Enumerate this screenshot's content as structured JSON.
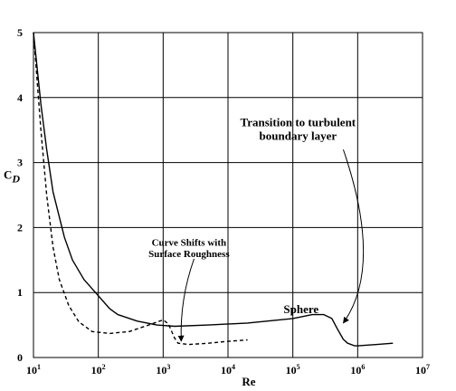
{
  "chart_data": {
    "type": "line",
    "xlabel": "Re",
    "ylabel_main": "C",
    "ylabel_sub": "D",
    "x_scale": "log",
    "xlim": [
      10,
      10000000
    ],
    "ylim": [
      0,
      5
    ],
    "grid": true,
    "x_ticks": [
      {
        "value": 10,
        "base": "10",
        "exp": "1"
      },
      {
        "value": 100,
        "base": "10",
        "exp": "2"
      },
      {
        "value": 1000,
        "base": "10",
        "exp": "3"
      },
      {
        "value": 10000,
        "base": "10",
        "exp": "4"
      },
      {
        "value": 100000,
        "base": "10",
        "exp": "5"
      },
      {
        "value": 1000000,
        "base": "10",
        "exp": "6"
      },
      {
        "value": 10000000,
        "base": "10",
        "exp": "7"
      }
    ],
    "y_ticks": [
      "0",
      "1",
      "2",
      "3",
      "4",
      "5"
    ],
    "series": [
      {
        "name": "Sphere",
        "style": "solid",
        "points": [
          [
            10,
            5.0
          ],
          [
            13,
            3.9
          ],
          [
            16,
            3.2
          ],
          [
            20,
            2.55
          ],
          [
            30,
            1.85
          ],
          [
            40,
            1.5
          ],
          [
            60,
            1.2
          ],
          [
            100,
            0.95
          ],
          [
            150,
            0.75
          ],
          [
            200,
            0.66
          ],
          [
            400,
            0.56
          ],
          [
            800,
            0.5
          ],
          [
            1500,
            0.48
          ],
          [
            5000,
            0.5
          ],
          [
            20000,
            0.53
          ],
          [
            100000,
            0.6
          ],
          [
            200000,
            0.66
          ],
          [
            300000,
            0.66
          ],
          [
            400000,
            0.6
          ],
          [
            480000,
            0.45
          ],
          [
            600000,
            0.28
          ],
          [
            700000,
            0.22
          ],
          [
            900000,
            0.18
          ],
          [
            1000000,
            0.18
          ],
          [
            2000000,
            0.2
          ],
          [
            3500000,
            0.22
          ]
        ]
      },
      {
        "name": "",
        "style": "dashed",
        "points": [
          [
            10,
            5.0
          ],
          [
            13,
            3.5
          ],
          [
            16,
            2.5
          ],
          [
            20,
            1.7
          ],
          [
            25,
            1.2
          ],
          [
            35,
            0.8
          ],
          [
            50,
            0.55
          ],
          [
            80,
            0.4
          ],
          [
            150,
            0.37
          ],
          [
            300,
            0.4
          ],
          [
            600,
            0.5
          ],
          [
            1000,
            0.58
          ],
          [
            1200,
            0.52
          ],
          [
            1500,
            0.3
          ],
          [
            1700,
            0.22
          ],
          [
            2500,
            0.2
          ],
          [
            5000,
            0.22
          ],
          [
            10000,
            0.25
          ],
          [
            20000,
            0.27
          ]
        ]
      }
    ],
    "annotations": [
      {
        "id": "sphere",
        "lines": [
          "Sphere"
        ],
        "x": 250000,
        "y": 0.68,
        "size": 13,
        "anchor": "end"
      },
      {
        "id": "roughness",
        "lines": [
          "Curve Shifts with",
          "Surface Roughness"
        ],
        "x": 2500,
        "y": 1.72,
        "size": 11,
        "anchor": "middle",
        "arrow_from": [
          3000,
          1.52
        ],
        "arrow_ctrl": [
          1800,
          0.9
        ],
        "arrow_to": [
          1900,
          0.25
        ]
      },
      {
        "id": "transition",
        "lines": [
          "Transition to turbulent",
          "boundary layer"
        ],
        "x": 120000,
        "y": 3.56,
        "size": 13,
        "anchor": "middle",
        "arrow_from": [
          600000,
          3.2
        ],
        "arrow_ctrl": [
          2500000,
          1.4
        ],
        "arrow_to": [
          600000,
          0.53
        ]
      }
    ]
  }
}
